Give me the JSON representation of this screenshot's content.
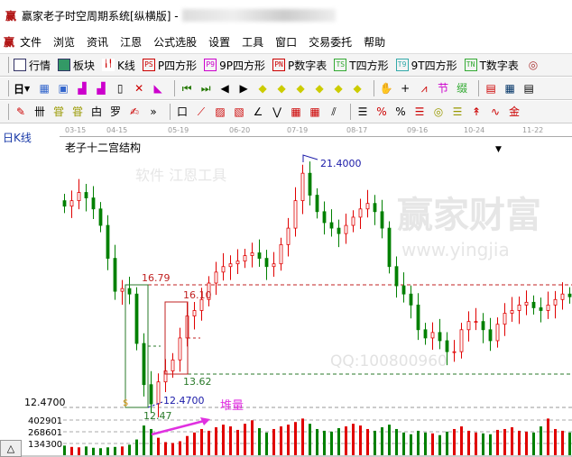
{
  "window": {
    "title": "赢家老子时空周期系统[纵横版] - ",
    "logo": "赢"
  },
  "menu": [
    "文件",
    "浏览",
    "资讯",
    "江恩",
    "公式选股",
    "设置",
    "工具",
    "窗口",
    "交易委托",
    "帮助"
  ],
  "toolbar1": [
    {
      "icon": "grid-table-icon",
      "label": "行情"
    },
    {
      "icon": "blocks-icon",
      "label": "板块"
    },
    {
      "icon": "candles-icon",
      "label": "K线"
    },
    {
      "icon": "PS",
      "label": "P四方形"
    },
    {
      "icon": "P9",
      "label": "9P四方形"
    },
    {
      "icon": "PN",
      "label": "P数字表"
    },
    {
      "icon": "TS",
      "label": "T四方形"
    },
    {
      "icon": "T9",
      "label": "9T四方形"
    },
    {
      "icon": "TN",
      "label": "T数字表"
    }
  ],
  "toolbar2": {
    "period": "日"
  },
  "date_axis": [
    "03-15",
    "04-15",
    "05-19",
    "06-20",
    "07-19",
    "08-17",
    "09-16",
    "10-24",
    "11-22"
  ],
  "period_label": "日K线",
  "study_name": "老子十二宫结构",
  "annotations": {
    "high": "21.4000",
    "box1_top": "16.79",
    "box2_top": "16.10",
    "box2_bottom": "13.62",
    "low_green": "12.47",
    "low_blue": "12.4700",
    "low_axis": "12.4700",
    "volume_note": "堆量",
    "dollar": "$"
  },
  "volume_axis": [
    "402901",
    "268601",
    "134300"
  ],
  "watermark": {
    "main": "赢家财富",
    "url": "www.yingjia",
    "qq": "QQ:100800960",
    "sub": "软件 江恩工具"
  },
  "colors": {
    "up": "#e00000",
    "down": "#008000",
    "box1": "#2a7a2a",
    "box2": "#c02020",
    "blue": "#1a1aa8",
    "magenta": "#e030e0"
  },
  "chart_data": {
    "type": "candlestick",
    "price_range": [
      12.47,
      21.4
    ],
    "closes": [
      19.8,
      20.0,
      20.3,
      20.1,
      19.7,
      19.1,
      17.9,
      16.7,
      16.8,
      16.6,
      14.8,
      13.3,
      12.6,
      13.4,
      13.8,
      14.2,
      15.0,
      15.8,
      16.0,
      16.4,
      17.0,
      17.4,
      17.6,
      17.7,
      17.8,
      18.0,
      18.1,
      17.9,
      17.6,
      17.7,
      18.4,
      19.0,
      20.0,
      21.0,
      20.2,
      19.6,
      19.2,
      19.0,
      18.8,
      19.1,
      19.4,
      19.7,
      19.9,
      19.6,
      19.0,
      17.6,
      16.9,
      16.6,
      16.2,
      15.3,
      15.0,
      15.2,
      14.9,
      14.5,
      14.5,
      15.3,
      15.6,
      15.6,
      15.3,
      14.9,
      15.5,
      15.9,
      16.0,
      16.2,
      16.3,
      16.1,
      16.0,
      16.2,
      16.4,
      16.6,
      16.5
    ],
    "volumes": [
      110000,
      95000,
      90000,
      100000,
      85000,
      80000,
      90000,
      95000,
      100000,
      120000,
      180000,
      340000,
      300000,
      200000,
      150000,
      140000,
      160000,
      220000,
      260000,
      300000,
      280000,
      320000,
      350000,
      330000,
      290000,
      360000,
      400000,
      310000,
      260000,
      300000,
      330000,
      350000,
      380000,
      420000,
      360000,
      300000,
      280000,
      270000,
      310000,
      330000,
      360000,
      340000,
      300000,
      280000,
      320000,
      350000,
      300000,
      260000,
      240000,
      280000,
      260000,
      250000,
      230000,
      270000,
      300000,
      330000,
      280000,
      260000,
      250000,
      240000,
      290000,
      300000,
      320000,
      280000,
      270000,
      260000,
      330000,
      420000,
      300000,
      280000,
      260000
    ],
    "volume_range": [
      0,
      402901
    ]
  }
}
